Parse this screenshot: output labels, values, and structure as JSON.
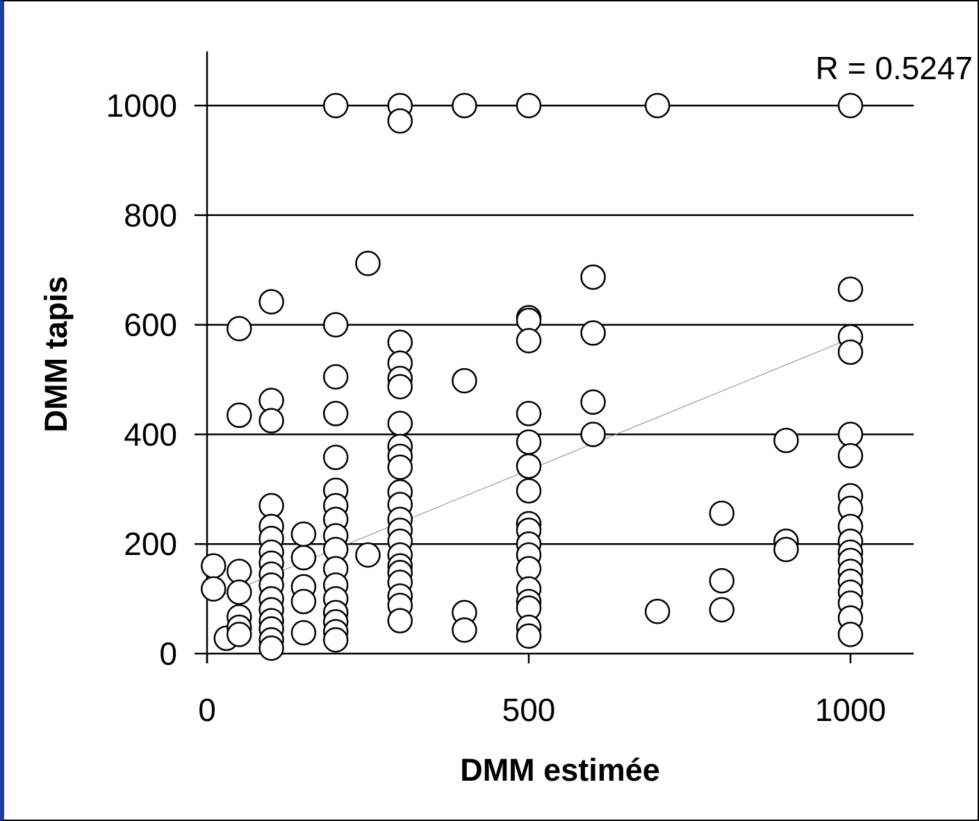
{
  "chart_data": {
    "type": "scatter",
    "xlabel": "DMM estimée",
    "ylabel": "DMM tapis",
    "annotation": "R = 0.5247",
    "xlim": [
      0,
      1090
    ],
    "ylim": [
      0,
      1100
    ],
    "x_ticks": [
      0,
      500,
      1000
    ],
    "y_ticks": [
      0,
      200,
      400,
      600,
      800,
      1000
    ],
    "grid": "horizontal",
    "trendline": {
      "x": [
        10,
        1000
      ],
      "y": [
        100,
        575
      ]
    },
    "colors": {
      "marker_fill": "#ffffff",
      "marker_stroke": "#000000",
      "grid": "#000000",
      "trendline": "#888888",
      "frame_left": "#1f3fa8"
    },
    "points": [
      [
        200,
        1000
      ],
      [
        300,
        1000
      ],
      [
        300,
        972
      ],
      [
        400,
        1000
      ],
      [
        500,
        1000
      ],
      [
        700,
        1000
      ],
      [
        1000,
        1000
      ],
      [
        250,
        712
      ],
      [
        600,
        687
      ],
      [
        100,
        642
      ],
      [
        1000,
        665
      ],
      [
        200,
        600
      ],
      [
        50,
        593
      ],
      [
        500,
        613
      ],
      [
        500,
        608
      ],
      [
        500,
        571
      ],
      [
        600,
        585
      ],
      [
        300,
        568
      ],
      [
        300,
        530
      ],
      [
        300,
        502
      ],
      [
        300,
        487
      ],
      [
        1000,
        578
      ],
      [
        1000,
        550
      ],
      [
        200,
        505
      ],
      [
        400,
        498
      ],
      [
        100,
        462
      ],
      [
        100,
        425
      ],
      [
        50,
        435
      ],
      [
        200,
        438
      ],
      [
        500,
        438
      ],
      [
        600,
        459
      ],
      [
        600,
        400
      ],
      [
        300,
        420
      ],
      [
        300,
        378
      ],
      [
        300,
        360
      ],
      [
        300,
        340
      ],
      [
        500,
        386
      ],
      [
        500,
        342
      ],
      [
        500,
        297
      ],
      [
        900,
        389
      ],
      [
        1000,
        400
      ],
      [
        1000,
        361
      ],
      [
        200,
        358
      ],
      [
        200,
        298
      ],
      [
        200,
        270
      ],
      [
        200,
        245
      ],
      [
        200,
        215
      ],
      [
        200,
        190
      ],
      [
        200,
        155
      ],
      [
        200,
        125
      ],
      [
        200,
        100
      ],
      [
        200,
        75
      ],
      [
        200,
        58
      ],
      [
        200,
        40
      ],
      [
        200,
        25
      ],
      [
        300,
        295
      ],
      [
        300,
        272
      ],
      [
        300,
        245
      ],
      [
        300,
        225
      ],
      [
        300,
        205
      ],
      [
        300,
        180
      ],
      [
        300,
        160
      ],
      [
        300,
        148
      ],
      [
        300,
        130
      ],
      [
        300,
        105
      ],
      [
        300,
        88
      ],
      [
        300,
        60
      ],
      [
        100,
        270
      ],
      [
        100,
        232
      ],
      [
        100,
        210
      ],
      [
        100,
        185
      ],
      [
        100,
        165
      ],
      [
        100,
        145
      ],
      [
        100,
        125
      ],
      [
        100,
        100
      ],
      [
        100,
        80
      ],
      [
        100,
        60
      ],
      [
        100,
        45
      ],
      [
        100,
        25
      ],
      [
        100,
        10
      ],
      [
        150,
        218
      ],
      [
        150,
        175
      ],
      [
        150,
        122
      ],
      [
        150,
        95
      ],
      [
        150,
        38
      ],
      [
        250,
        180
      ],
      [
        800,
        256
      ],
      [
        800,
        133
      ],
      [
        800,
        80
      ],
      [
        900,
        205
      ],
      [
        900,
        190
      ],
      [
        700,
        77
      ],
      [
        500,
        237
      ],
      [
        500,
        225
      ],
      [
        500,
        200
      ],
      [
        500,
        180
      ],
      [
        500,
        155
      ],
      [
        500,
        118
      ],
      [
        500,
        95
      ],
      [
        500,
        83
      ],
      [
        500,
        48
      ],
      [
        500,
        32
      ],
      [
        400,
        75
      ],
      [
        400,
        43
      ],
      [
        1000,
        288
      ],
      [
        1000,
        265
      ],
      [
        1000,
        232
      ],
      [
        1000,
        205
      ],
      [
        1000,
        185
      ],
      [
        1000,
        170
      ],
      [
        1000,
        150
      ],
      [
        1000,
        132
      ],
      [
        1000,
        112
      ],
      [
        1000,
        92
      ],
      [
        1000,
        65
      ],
      [
        1000,
        35
      ],
      [
        10,
        160
      ],
      [
        10,
        118
      ],
      [
        30,
        28
      ],
      [
        50,
        150
      ],
      [
        50,
        112
      ],
      [
        50,
        67
      ],
      [
        50,
        48
      ],
      [
        50,
        35
      ]
    ]
  }
}
